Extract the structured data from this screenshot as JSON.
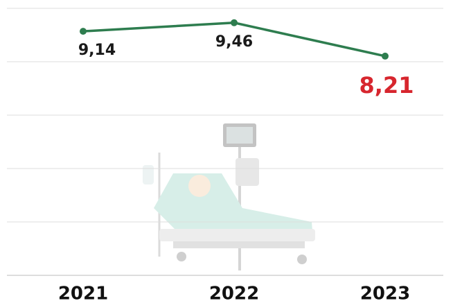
{
  "chart_data": {
    "type": "line",
    "categories": [
      "2021",
      "2022",
      "2023"
    ],
    "series": [
      {
        "color": "#2e7d4f",
        "values": [
          9.14,
          9.46,
          8.21
        ],
        "value_labels": [
          "9,14",
          "9,46",
          "8,21"
        ],
        "label_colors": [
          "#1a1a1a",
          "#1a1a1a",
          "#d7262e"
        ]
      }
    ],
    "ylim": [
      0,
      10
    ],
    "yticks": [
      0,
      2,
      4,
      6,
      8,
      10
    ],
    "grid": true
  }
}
